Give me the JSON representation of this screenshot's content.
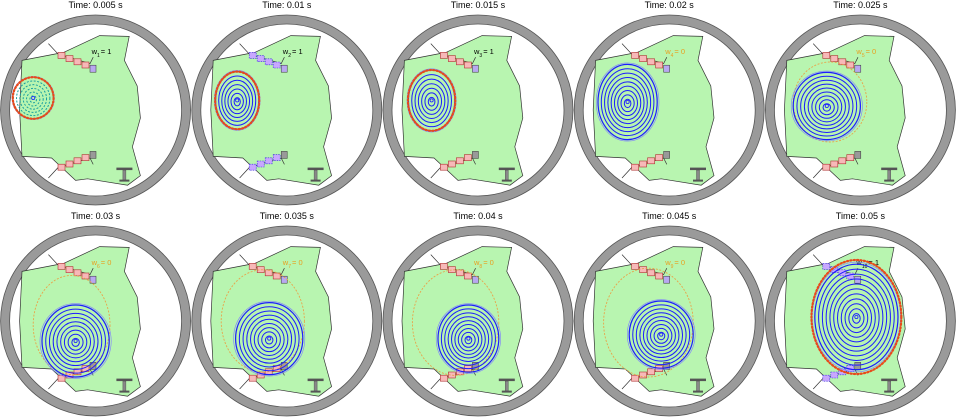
{
  "panels": [
    {
      "time": "Time: 0.005 s",
      "w_label": "w",
      "w_sub": "1",
      "w_value": "= 1",
      "active": true
    },
    {
      "time": "Time: 0.01 s",
      "w_label": "w",
      "w_sub": "2",
      "w_value": "= 1",
      "active": true
    },
    {
      "time": "Time: 0.015 s",
      "w_label": "w",
      "w_sub": "3",
      "w_value": "= 1",
      "active": true
    },
    {
      "time": "Time: 0.02 s",
      "w_label": "w",
      "w_sub": "4",
      "w_value": "= 0",
      "active": false
    },
    {
      "time": "Time: 0.025 s",
      "w_label": "w",
      "w_sub": "5",
      "w_value": "= 0",
      "active": false
    },
    {
      "time": "Time: 0.03 s",
      "w_label": "w",
      "w_sub": "6",
      "w_value": "= 0",
      "active": false
    },
    {
      "time": "Time: 0.035 s",
      "w_label": "w",
      "w_sub": "7",
      "w_value": "= 0",
      "active": false
    },
    {
      "time": "Time: 0.04 s",
      "w_label": "w",
      "w_sub": "8",
      "w_value": "= 0",
      "active": false
    },
    {
      "time": "Time: 0.045 s",
      "w_label": "w",
      "w_sub": "9",
      "w_value": "= 0",
      "active": false
    },
    {
      "time": "Time: 0.05 s",
      "w_label": "w",
      "w_sub": "10",
      "w_value": "= 1",
      "active": true
    }
  ],
  "colors": {
    "vessel_ring": "#9a9a9a",
    "vessel_ring_stroke": "#555555",
    "limiter_fill": "#b8f5b0",
    "flux_contour": "#1c1cff",
    "target_boundary": "#e84a1a",
    "inactive_target": "#e8a44a",
    "coil_fill": "#f7b8b8",
    "active_coil_fill": "#c8a8ff",
    "w_active": "#000000",
    "w_inactive": "#e8a020"
  }
}
